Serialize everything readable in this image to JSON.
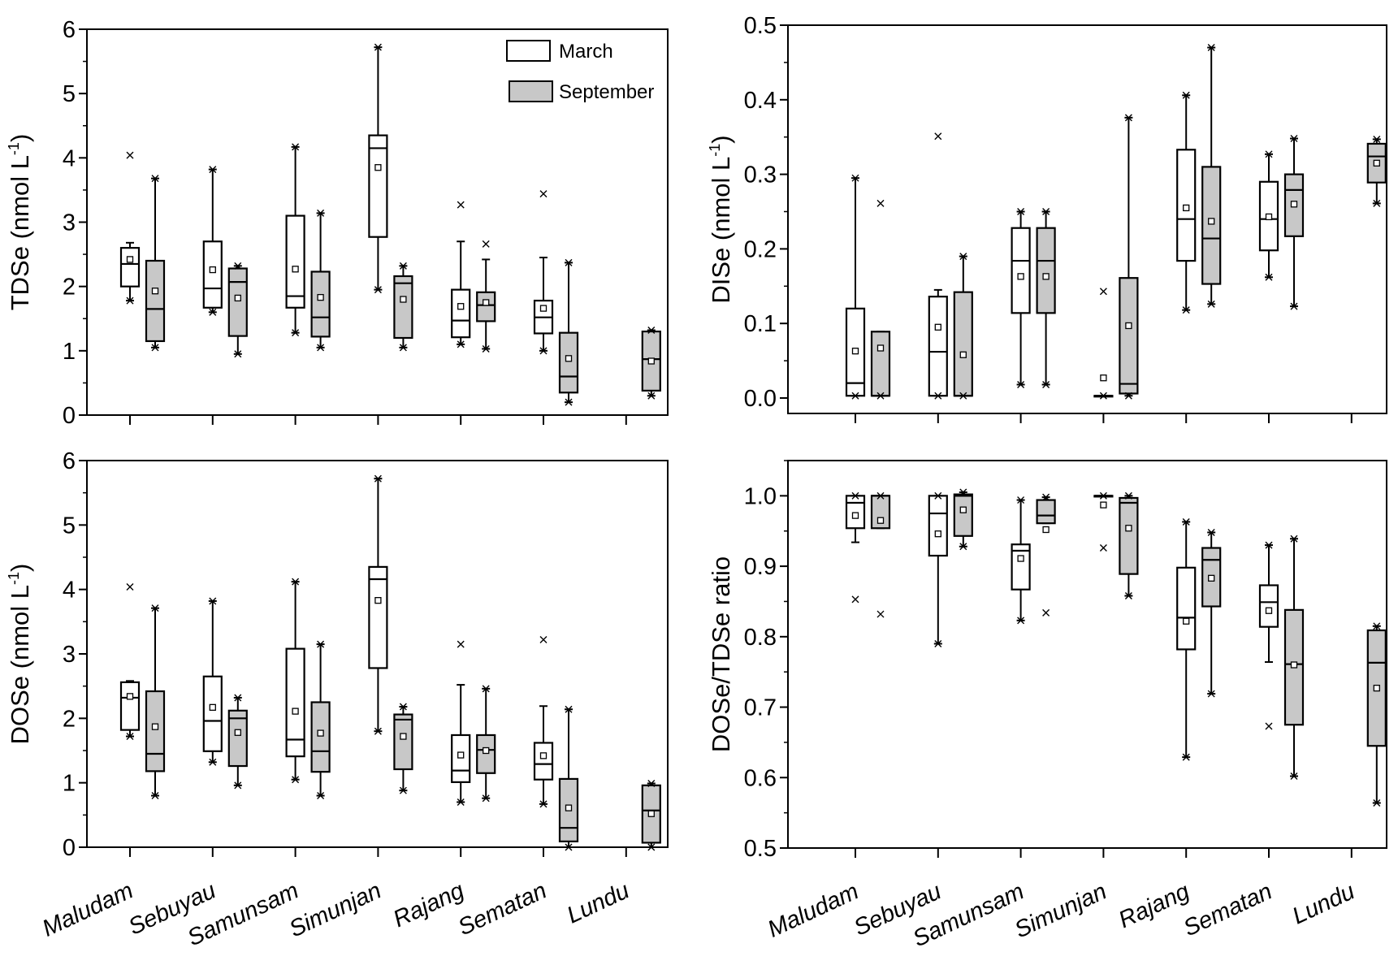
{
  "chart_data": [
    {
      "type": "box",
      "id": "tdse",
      "ylabel": "TDSe (nmol L-1)",
      "ylabel_main": "TDSe (nmol L",
      "ylabel_sup": "-1",
      "ylabel_end": ")",
      "ylim": [
        0,
        6
      ],
      "yticks": [
        0,
        1,
        2,
        3,
        4,
        5,
        6
      ],
      "ytick_labels": [
        "0",
        "1",
        "2",
        "3",
        "4",
        "5",
        "6"
      ],
      "minor_step": 0.5,
      "legend": {
        "placement": "top-right",
        "entries": [
          "March",
          "September"
        ]
      },
      "categories": [
        "Maludam",
        "Sebuyau",
        "Samunsam",
        "Simunjan",
        "Rajang",
        "Sematan",
        "Lundu"
      ],
      "box_fields": [
        "whisker_low",
        "q1",
        "median",
        "q3",
        "whisker_high",
        "mean",
        "min",
        "max"
      ],
      "series": [
        {
          "name": "March",
          "color": "#ffffff",
          "boxes": [
            [
              1.78,
              2.0,
              2.35,
              2.6,
              2.68,
              2.42,
              1.78,
              4.04
            ],
            [
              1.6,
              1.67,
              1.97,
              2.7,
              3.82,
              2.26,
              1.6,
              3.82
            ],
            [
              1.28,
              1.67,
              1.85,
              3.1,
              4.17,
              2.27,
              1.28,
              4.17
            ],
            [
              1.95,
              2.77,
              4.15,
              4.35,
              5.72,
              3.85,
              1.95,
              5.72
            ],
            [
              1.1,
              1.21,
              1.47,
              1.95,
              2.7,
              1.69,
              1.1,
              3.27
            ],
            [
              1.0,
              1.27,
              1.52,
              1.78,
              2.45,
              1.66,
              1.0,
              3.44
            ],
            null
          ]
        },
        {
          "name": "September",
          "color": "#c8c8c8",
          "boxes": [
            [
              1.05,
              1.15,
              1.65,
              2.4,
              3.68,
              1.93,
              1.05,
              3.68
            ],
            [
              0.95,
              1.23,
              2.07,
              2.28,
              2.32,
              1.82,
              0.95,
              2.32
            ],
            [
              1.05,
              1.22,
              1.52,
              2.23,
              3.14,
              1.83,
              1.05,
              3.14
            ],
            [
              1.05,
              1.2,
              2.05,
              2.16,
              2.32,
              1.8,
              1.05,
              2.32
            ],
            [
              1.03,
              1.46,
              1.71,
              1.91,
              2.42,
              1.75,
              1.03,
              2.66
            ],
            [
              0.2,
              0.35,
              0.6,
              1.28,
              2.37,
              0.88,
              0.2,
              2.37
            ],
            [
              0.3,
              0.38,
              0.87,
              1.3,
              1.32,
              0.84,
              0.3,
              1.32
            ]
          ]
        }
      ]
    },
    {
      "type": "box",
      "id": "dise",
      "ylabel": "DISe (nmol L-1)",
      "ylabel_main": "DISe (nmol L",
      "ylabel_sup": "-1",
      "ylabel_end": ")",
      "ylim": [
        -0.0207,
        0.5
      ],
      "yticks": [
        0,
        0.1,
        0.2,
        0.3,
        0.4,
        0.5
      ],
      "ytick_labels": [
        "0.0",
        "0.1",
        "0.2",
        "0.3",
        "0.4",
        "0.5"
      ],
      "minor_step": 0.05,
      "categories": [
        "Maludam",
        "Sebuyau",
        "Samunsam",
        "Simunjan",
        "Rajang",
        "Sematan",
        "Lundu"
      ],
      "box_fields": [
        "whisker_low",
        "q1",
        "median",
        "q3",
        "whisker_high",
        "mean",
        "min",
        "max"
      ],
      "series": [
        {
          "name": "March",
          "color": "#ffffff",
          "boxes": [
            [
              0.003,
              0.003,
              0.02,
              0.12,
              0.295,
              0.063,
              0.003,
              0.295
            ],
            [
              0.003,
              0.003,
              0.062,
              0.136,
              0.145,
              0.095,
              0.003,
              0.351
            ],
            [
              0.018,
              0.114,
              0.184,
              0.228,
              0.25,
              0.163,
              0.018,
              0.25
            ],
            [
              0.003,
              0.003,
              0.003,
              0.003,
              0.003,
              0.027,
              0.003,
              0.143
            ],
            [
              0.118,
              0.184,
              0.24,
              0.333,
              0.406,
              0.255,
              0.118,
              0.406
            ],
            [
              0.162,
              0.198,
              0.24,
              0.29,
              0.327,
              0.243,
              0.162,
              0.327
            ],
            null
          ]
        },
        {
          "name": "September",
          "color": "#c8c8c8",
          "boxes": [
            [
              0.003,
              0.003,
              0.003,
              0.089,
              0.089,
              0.067,
              0.003,
              0.261
            ],
            [
              0.003,
              0.003,
              0.003,
              0.142,
              0.19,
              0.058,
              0.003,
              0.19
            ],
            [
              0.018,
              0.114,
              0.184,
              0.228,
              0.25,
              0.163,
              0.018,
              0.25
            ],
            [
              0.003,
              0.006,
              0.019,
              0.161,
              0.376,
              0.097,
              0.003,
              0.376
            ],
            [
              0.126,
              0.153,
              0.214,
              0.31,
              0.47,
              0.237,
              0.126,
              0.47
            ],
            [
              0.123,
              0.217,
              0.279,
              0.3,
              0.348,
              0.26,
              0.123,
              0.348
            ],
            [
              0.261,
              0.289,
              0.324,
              0.341,
              0.347,
              0.315,
              0.261,
              0.347
            ]
          ]
        }
      ]
    },
    {
      "type": "box",
      "id": "dose",
      "ylabel": "DOSe (nmol L-1)",
      "ylabel_main": "DOSe (nmol L",
      "ylabel_sup": "-1",
      "ylabel_end": ")",
      "ylim": [
        0,
        6
      ],
      "yticks": [
        0,
        1,
        2,
        3,
        4,
        5,
        6
      ],
      "ytick_labels": [
        "0",
        "1",
        "2",
        "3",
        "4",
        "5",
        "6"
      ],
      "minor_step": 0.5,
      "categories": [
        "Maludam",
        "Sebuyau",
        "Samunsam",
        "Simunjan",
        "Rajang",
        "Sematan",
        "Lundu"
      ],
      "box_fields": [
        "whisker_low",
        "q1",
        "median",
        "q3",
        "whisker_high",
        "mean",
        "min",
        "max"
      ],
      "series": [
        {
          "name": "March",
          "color": "#ffffff",
          "boxes": [
            [
              1.72,
              1.82,
              2.32,
              2.56,
              2.58,
              2.34,
              1.72,
              4.04
            ],
            [
              1.32,
              1.49,
              1.96,
              2.65,
              3.82,
              2.17,
              1.32,
              3.82
            ],
            [
              1.05,
              1.41,
              1.67,
              3.08,
              4.12,
              2.11,
              1.05,
              4.12
            ],
            [
              1.8,
              2.78,
              4.16,
              4.35,
              5.72,
              3.83,
              1.8,
              5.72
            ],
            [
              0.7,
              1.01,
              1.19,
              1.74,
              2.52,
              1.43,
              0.7,
              3.15
            ],
            [
              0.67,
              1.05,
              1.29,
              1.62,
              2.19,
              1.42,
              0.67,
              3.22
            ],
            null
          ]
        },
        {
          "name": "September",
          "color": "#c8c8c8",
          "boxes": [
            [
              0.8,
              1.18,
              1.45,
              2.42,
              3.71,
              1.87,
              0.8,
              3.71
            ],
            [
              0.96,
              1.26,
              2.0,
              2.12,
              2.32,
              1.78,
              0.96,
              2.32
            ],
            [
              0.8,
              1.17,
              1.49,
              2.25,
              3.15,
              1.77,
              0.8,
              3.15
            ],
            [
              0.88,
              1.21,
              1.98,
              2.06,
              2.18,
              1.72,
              0.88,
              2.18
            ],
            [
              0.76,
              1.15,
              1.51,
              1.74,
              2.46,
              1.5,
              0.76,
              2.46
            ],
            [
              0.0,
              0.09,
              0.3,
              1.06,
              2.14,
              0.61,
              0.0,
              2.14
            ],
            [
              0.0,
              0.07,
              0.57,
              0.96,
              0.99,
              0.52,
              0.0,
              0.99
            ]
          ]
        }
      ]
    },
    {
      "type": "box",
      "id": "ratio",
      "ylabel": "DOSe/TDSe  ratio",
      "ylabel_main": "DOSe/TDSe  ratio",
      "ylabel_sup": "",
      "ylabel_end": "",
      "ylim": [
        0.5,
        1.05
      ],
      "yticks": [
        0.5,
        0.6,
        0.7,
        0.8,
        0.9,
        1.0
      ],
      "ytick_labels": [
        "0.5",
        "0.6",
        "0.7",
        "0.8",
        "0.9",
        "1.0"
      ],
      "minor_step": 0.05,
      "categories": [
        "Maludam",
        "Sebuyau",
        "Samunsam",
        "Simunjan",
        "Rajang",
        "Sematan",
        "Lundu"
      ],
      "box_fields": [
        "whisker_low",
        "q1",
        "median",
        "q3",
        "whisker_high",
        "mean",
        "min",
        "max"
      ],
      "series": [
        {
          "name": "March",
          "color": "#ffffff",
          "boxes": [
            [
              0.934,
              0.954,
              0.99,
              1.0,
              1.0,
              0.972,
              0.853,
              1.0
            ],
            [
              0.79,
              0.915,
              0.975,
              1.0,
              1.0,
              0.946,
              0.79,
              1.0
            ],
            [
              0.823,
              0.867,
              0.922,
              0.931,
              0.994,
              0.911,
              0.823,
              0.994
            ],
            [
              1.0,
              1.0,
              1.0,
              1.0,
              1.0,
              0.987,
              0.926,
              1.0
            ],
            [
              0.629,
              0.782,
              0.827,
              0.898,
              0.963,
              0.822,
              0.629,
              0.963
            ],
            [
              0.764,
              0.814,
              0.849,
              0.873,
              0.93,
              0.837,
              0.673,
              0.93
            ],
            null
          ]
        },
        {
          "name": "September",
          "color": "#c8c8c8",
          "boxes": [
            [
              0.954,
              0.954,
              1.0,
              1.0,
              1.0,
              0.965,
              0.832,
              1.0
            ],
            [
              0.928,
              0.943,
              1.0,
              1.002,
              1.005,
              0.98,
              0.928,
              1.005
            ],
            [
              0.961,
              0.961,
              0.972,
              0.994,
              0.998,
              0.952,
              0.834,
              0.998
            ],
            [
              0.858,
              0.889,
              0.99,
              0.997,
              1.0,
              0.954,
              0.858,
              1.0
            ],
            [
              0.719,
              0.843,
              0.909,
              0.926,
              0.948,
              0.883,
              0.719,
              0.948
            ],
            [
              0.602,
              0.675,
              0.761,
              0.838,
              0.939,
              0.76,
              0.602,
              0.939
            ],
            [
              0.564,
              0.645,
              0.763,
              0.809,
              0.815,
              0.727,
              0.564,
              0.815
            ]
          ]
        }
      ]
    }
  ]
}
